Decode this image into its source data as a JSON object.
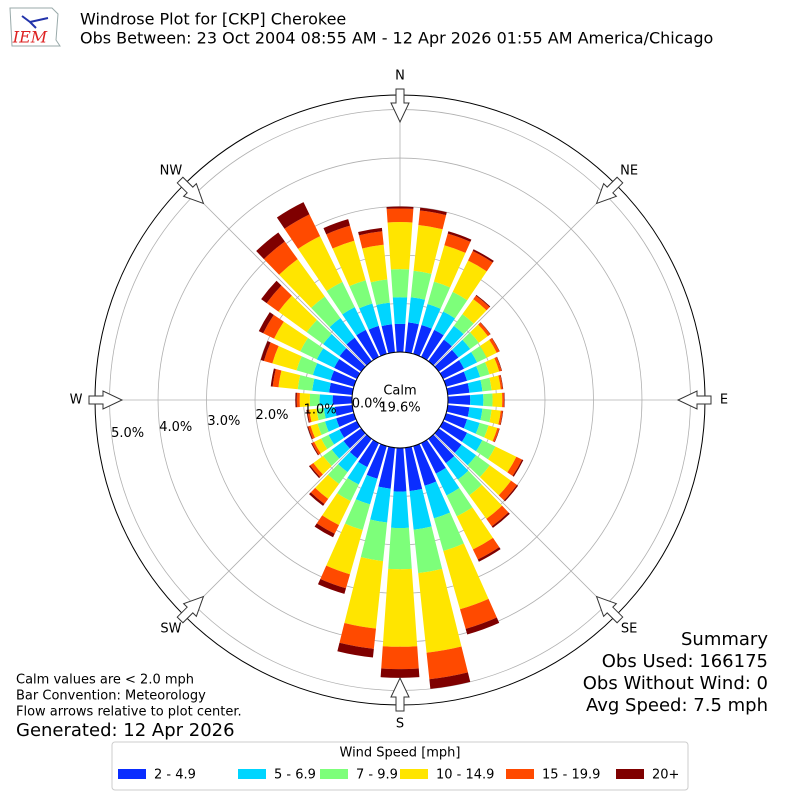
{
  "chart_data": {
    "type": "windrose",
    "logo_text": "IEM",
    "title": "Windrose Plot for [CKP] Cherokee",
    "subtitle": "Obs Between: 23 Oct 2004 08:55 AM - 12 Apr 2026 01:55 AM America/Chicago",
    "direction_labels": [
      "N",
      "NE",
      "E",
      "SE",
      "S",
      "SW",
      "W",
      "NW"
    ],
    "calm_label": "Calm",
    "calm_value": "19.6%",
    "rlim": [
      0,
      5.3
    ],
    "rticks": [
      {
        "value": 0,
        "label": "0.0%"
      },
      {
        "value": 1,
        "label": "1.0%"
      },
      {
        "value": 2,
        "label": "2.0%"
      },
      {
        "value": 3,
        "label": "3.0%"
      },
      {
        "value": 4,
        "label": "4.0%"
      },
      {
        "value": 5,
        "label": "5.0%"
      }
    ],
    "grid": true,
    "legend_title": "Wind Speed [mph]",
    "legend_position": "bottom",
    "series": [
      {
        "name": "2 - 4.9",
        "color": "#0a2dff",
        "values": [
          0.58,
          0.62,
          0.62,
          0.62,
          0.55,
          0.5,
          0.48,
          0.45,
          0.45,
          0.46,
          0.45,
          0.45,
          0.55,
          0.58,
          0.62,
          0.7,
          0.85,
          0.9,
          0.9,
          0.85,
          0.7,
          0.55,
          0.5,
          0.45,
          0.4,
          0.38,
          0.36,
          0.4,
          0.48,
          0.5,
          0.52,
          0.55,
          0.6,
          0.62,
          0.6,
          0.58
        ]
      },
      {
        "name": "5 - 6.9",
        "color": "#00d5ff",
        "values": [
          0.55,
          0.52,
          0.45,
          0.42,
          0.35,
          0.3,
          0.3,
          0.28,
          0.27,
          0.27,
          0.27,
          0.27,
          0.35,
          0.37,
          0.42,
          0.5,
          0.7,
          0.8,
          0.75,
          0.7,
          0.55,
          0.4,
          0.35,
          0.3,
          0.25,
          0.24,
          0.23,
          0.27,
          0.35,
          0.38,
          0.4,
          0.42,
          0.5,
          0.52,
          0.48,
          0.45
        ]
      },
      {
        "name": "7 - 9.9",
        "color": "#7dff7a",
        "values": [
          0.58,
          0.55,
          0.48,
          0.45,
          0.3,
          0.22,
          0.22,
          0.2,
          0.19,
          0.19,
          0.19,
          0.19,
          0.3,
          0.35,
          0.4,
          0.48,
          0.7,
          0.9,
          0.85,
          0.8,
          0.55,
          0.38,
          0.3,
          0.22,
          0.17,
          0.16,
          0.15,
          0.2,
          0.3,
          0.35,
          0.38,
          0.42,
          0.55,
          0.58,
          0.5,
          0.48
        ]
      },
      {
        "name": "10 - 14.9",
        "color": "#ffe500",
        "values": [
          0.97,
          0.95,
          0.78,
          0.72,
          0.38,
          0.23,
          0.23,
          0.21,
          0.19,
          0.2,
          0.19,
          0.19,
          0.48,
          0.54,
          0.6,
          0.76,
          1.25,
          1.65,
          1.6,
          1.4,
          0.95,
          0.55,
          0.38,
          0.25,
          0.16,
          0.15,
          0.15,
          0.21,
          0.4,
          0.52,
          0.6,
          0.72,
          0.95,
          1.05,
          0.85,
          0.72
        ]
      },
      {
        "name": "15 - 19.9",
        "color": "#ff4a00",
        "values": [
          0.28,
          0.3,
          0.25,
          0.22,
          0.09,
          0.06,
          0.06,
          0.05,
          0.04,
          0.04,
          0.04,
          0.04,
          0.13,
          0.15,
          0.19,
          0.23,
          0.42,
          0.55,
          0.46,
          0.42,
          0.3,
          0.2,
          0.13,
          0.08,
          0.05,
          0.05,
          0.04,
          0.06,
          0.12,
          0.18,
          0.25,
          0.3,
          0.45,
          0.5,
          0.32,
          0.28
        ]
      },
      {
        "name": "20+",
        "color": "#7f0000",
        "values": [
          0.04,
          0.06,
          0.05,
          0.04,
          0.02,
          0.01,
          0.01,
          0.01,
          0.01,
          0.01,
          0.01,
          0.01,
          0.03,
          0.03,
          0.04,
          0.05,
          0.12,
          0.2,
          0.18,
          0.18,
          0.12,
          0.08,
          0.05,
          0.03,
          0.02,
          0.02,
          0.02,
          0.03,
          0.04,
          0.07,
          0.1,
          0.14,
          0.23,
          0.28,
          0.14,
          0.07
        ]
      }
    ],
    "summary_title": "Summary",
    "summary_lines": [
      "Obs Used: 166175",
      "Obs Without Wind: 0",
      "Avg Speed: 7.5 mph"
    ],
    "notes": [
      "Calm values are < 2.0 mph",
      "Bar Convention: Meteorology",
      "Flow arrows relative to plot center."
    ],
    "generated": "Generated: 12 Apr 2026"
  }
}
